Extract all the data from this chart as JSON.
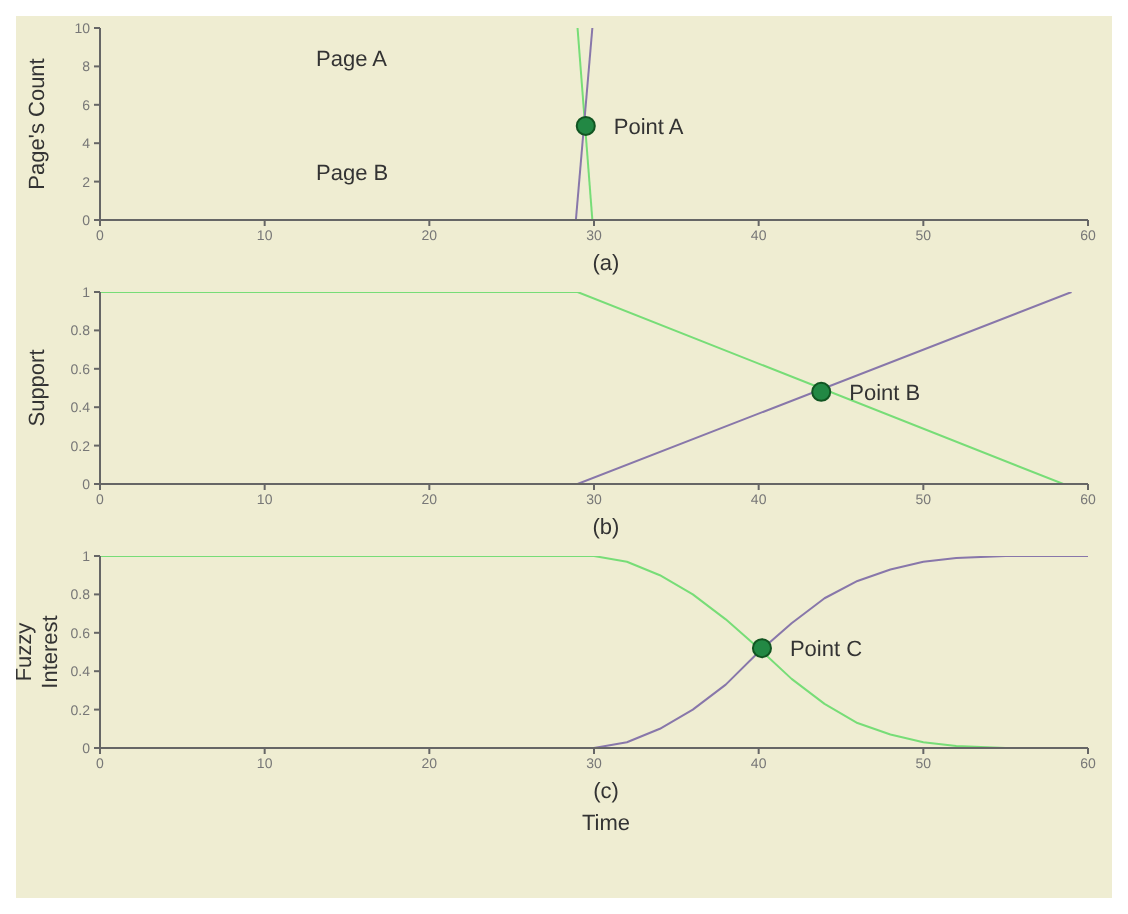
{
  "chart_data": [
    {
      "type": "line",
      "ylabel": "Page's Count",
      "xlim": [
        0,
        60
      ],
      "xticks": [
        0,
        10,
        20,
        30,
        40,
        50,
        60
      ],
      "ylim": [
        0,
        10
      ],
      "yticks": [
        0,
        2,
        4,
        6,
        8,
        10
      ],
      "grid": false,
      "marker": "none",
      "series": [
        {
          "color": "#77dd77",
          "x": [
            29.0,
            29.9
          ],
          "values": [
            10,
            0
          ]
        },
        {
          "color": "#8877aa",
          "x": [
            28.9,
            29.9
          ],
          "values": [
            0,
            10
          ]
        },
        {
          "type": "scatter",
          "marker": "circle",
          "color": "#228844",
          "x": [
            29.5
          ],
          "values": [
            4.9
          ]
        }
      ],
      "annotations": [
        "Page A",
        "Page B",
        {
          "text": "Point A",
          "x": 29.5,
          "y": 4.9
        },
        "(a)"
      ]
    },
    {
      "type": "line",
      "ylabel": "Support",
      "xlim": [
        0,
        60
      ],
      "xticks": [
        0,
        10,
        20,
        30,
        40,
        50,
        60
      ],
      "ylim": [
        0,
        1
      ],
      "yticks": [
        0,
        0.2,
        0.4,
        0.6,
        0.8,
        1
      ],
      "grid": false,
      "marker": "none",
      "series": [
        {
          "color": "#77dd77",
          "x": [
            0,
            29,
            58.5
          ],
          "values": [
            1,
            1,
            0
          ]
        },
        {
          "color": "#8877aa",
          "x": [
            0,
            29,
            59
          ],
          "values": [
            0,
            0,
            1
          ]
        },
        {
          "type": "scatter",
          "marker": "circle",
          "color": "#228844",
          "x": [
            43.8
          ],
          "values": [
            0.48
          ]
        }
      ],
      "annotations": [
        {
          "text": "Point B",
          "x": 43.8,
          "y": 0.48
        },
        "(b)"
      ]
    },
    {
      "type": "line",
      "ylabel": "Fuzzy\nInterest",
      "xlabel": "Time",
      "xlim": [
        0,
        60
      ],
      "xticks": [
        0,
        10,
        20,
        30,
        40,
        50,
        60
      ],
      "ylim": [
        0,
        1
      ],
      "yticks": [
        0,
        0.2,
        0.4,
        0.6,
        0.8,
        1
      ],
      "grid": false,
      "marker": "none",
      "series": [
        {
          "color": "#77dd77",
          "x": [
            0,
            30,
            32,
            34,
            36,
            38,
            40,
            42,
            44,
            46,
            48,
            50,
            52,
            55,
            60
          ],
          "values": [
            1,
            1,
            0.97,
            0.9,
            0.8,
            0.67,
            0.52,
            0.36,
            0.23,
            0.13,
            0.07,
            0.03,
            0.01,
            0,
            0
          ]
        },
        {
          "color": "#8877aa",
          "x": [
            0,
            30,
            32,
            34,
            36,
            38,
            40,
            42,
            44,
            46,
            48,
            50,
            52,
            55,
            60
          ],
          "values": [
            0,
            0,
            0.03,
            0.1,
            0.2,
            0.33,
            0.5,
            0.65,
            0.78,
            0.87,
            0.93,
            0.97,
            0.99,
            1,
            1
          ]
        },
        {
          "type": "scatter",
          "marker": "circle",
          "color": "#228844",
          "x": [
            40.2
          ],
          "values": [
            0.52
          ]
        }
      ],
      "annotations": [
        {
          "text": "Point C",
          "x": 40.2,
          "y": 0.52
        },
        "(c)"
      ]
    }
  ]
}
